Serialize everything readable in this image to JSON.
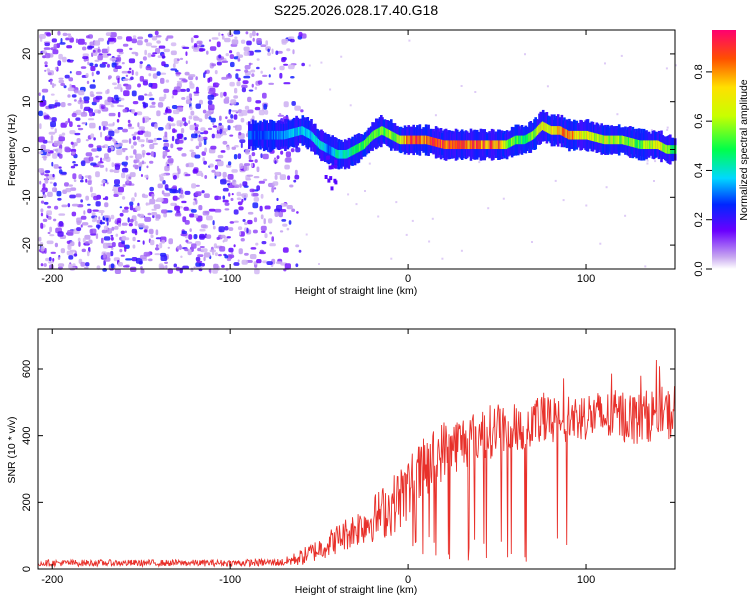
{
  "title": "S225.2026.028.17.40.G18",
  "chart_data": [
    {
      "type": "heatmap",
      "panel": "top",
      "xlabel": "Height of straight line (km)",
      "ylabel": "Frequency (Hz)",
      "xlim": [
        -208,
        150
      ],
      "ylim": [
        -25,
        25
      ],
      "xticks": [
        -200,
        -100,
        0,
        100
      ],
      "yticks": [
        -20,
        -10,
        0,
        10,
        20
      ],
      "colorbar": {
        "label": "Normalized spectral amplitude",
        "range": [
          0,
          0.97
        ],
        "ticks": [
          0.0,
          0.2,
          0.4,
          0.6,
          0.8
        ]
      },
      "noise_region_x": [
        -208,
        -70
      ],
      "ridge": {
        "x": [
          -90,
          -80,
          -70,
          -60,
          -55,
          -50,
          -45,
          -40,
          -35,
          -30,
          -25,
          -20,
          -15,
          -10,
          -5,
          0,
          10,
          20,
          30,
          40,
          50,
          55,
          60,
          65,
          70,
          75,
          80,
          85,
          90,
          95,
          100,
          110,
          120,
          130,
          135,
          140,
          145,
          150
        ],
        "freq": [
          3,
          3,
          3,
          4,
          3,
          1,
          0,
          -1,
          -1,
          0,
          1,
          3,
          4,
          3,
          2,
          2,
          2,
          1,
          1,
          1,
          1,
          1,
          2,
          2,
          3,
          5,
          4,
          4,
          3,
          3,
          3,
          2,
          2,
          1,
          1,
          1,
          0,
          0
        ],
        "amplitude": [
          0.3,
          0.3,
          0.35,
          0.4,
          0.35,
          0.45,
          0.3,
          0.45,
          0.4,
          0.5,
          0.55,
          0.6,
          0.55,
          0.6,
          0.6,
          0.95,
          0.9,
          0.95,
          0.85,
          0.9,
          0.9,
          0.6,
          0.55,
          0.5,
          0.6,
          0.7,
          0.75,
          0.8,
          0.85,
          0.75,
          0.7,
          0.65,
          0.6,
          0.55,
          0.65,
          0.7,
          0.6,
          0.5
        ]
      }
    },
    {
      "type": "line",
      "panel": "bottom",
      "xlabel": "Height of straight line (km)",
      "ylabel": "SNR (10 * v/v)",
      "xlim": [
        -208,
        150
      ],
      "ylim": [
        0,
        720
      ],
      "xticks": [
        -200,
        -100,
        0,
        100
      ],
      "yticks": [
        0,
        200,
        400,
        600
      ],
      "color": "#e8302a",
      "envelope": {
        "x": [
          -208,
          -100,
          -70,
          -60,
          -50,
          -40,
          -30,
          -20,
          -10,
          0,
          10,
          20,
          30,
          40,
          50,
          60,
          70,
          80,
          90,
          100,
          110,
          120,
          130,
          140,
          150
        ],
        "mean": [
          18,
          18,
          20,
          35,
          60,
          90,
          120,
          150,
          185,
          240,
          300,
          360,
          380,
          400,
          420,
          430,
          440,
          440,
          450,
          460,
          455,
          460,
          450,
          470,
          460
        ],
        "spread": [
          10,
          10,
          12,
          25,
          35,
          45,
          55,
          70,
          90,
          100,
          100,
          90,
          85,
          85,
          80,
          80,
          80,
          80,
          75,
          75,
          80,
          80,
          80,
          80,
          80
        ]
      }
    }
  ]
}
